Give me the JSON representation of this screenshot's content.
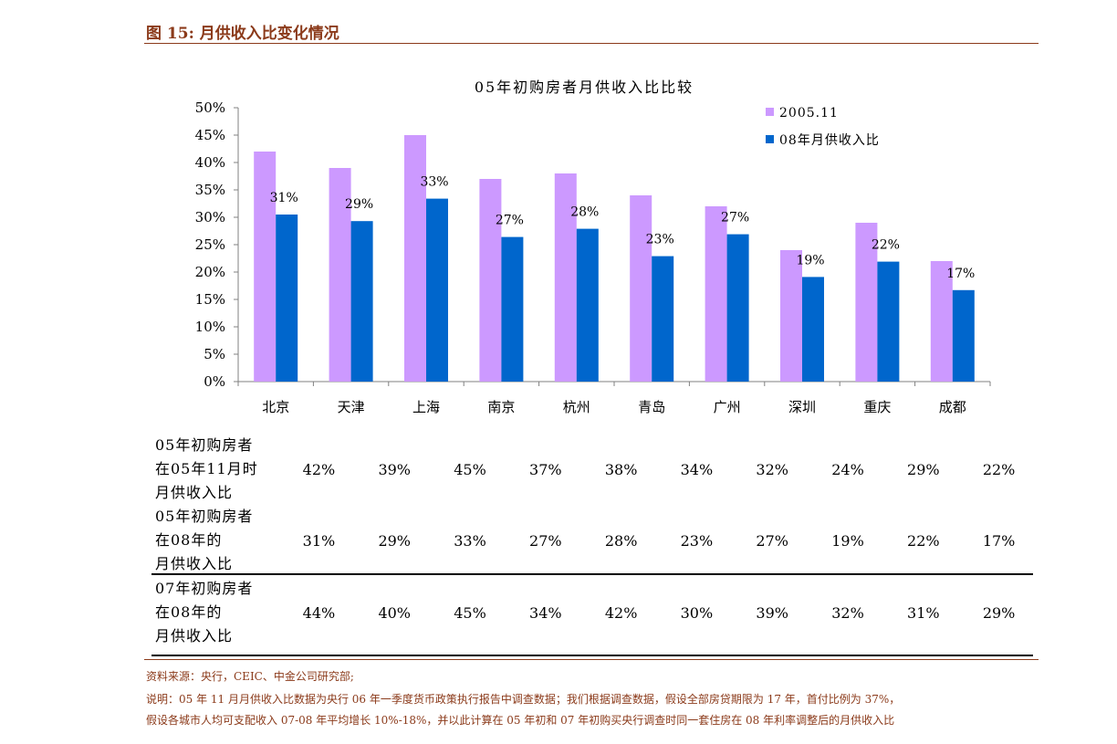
{
  "figure_title": "图 15:  月供收入比变化情况",
  "chart_data": {
    "type": "bar",
    "title": "05年初购房者月供收入比比较",
    "categories": [
      "北京",
      "天津",
      "上海",
      "南京",
      "杭州",
      "青岛",
      "广州",
      "深圳",
      "重庆",
      "成都"
    ],
    "series": [
      {
        "name": "2005.11",
        "values": [
          42,
          39,
          45,
          37,
          38,
          34,
          32,
          24,
          29,
          22
        ],
        "color": "#cc99ff"
      },
      {
        "name": "08年月供收入比",
        "values": [
          30.5,
          29.3,
          33.4,
          26.4,
          27.9,
          22.9,
          26.9,
          19.1,
          21.9,
          16.7
        ],
        "color": "#0066cc"
      }
    ],
    "data_labels": [
      "31%",
      "29%",
      "33%",
      "27%",
      "28%",
      "23%",
      "27%",
      "19%",
      "22%",
      "17%"
    ],
    "yticks": [
      "0%",
      "5%",
      "10%",
      "15%",
      "20%",
      "25%",
      "30%",
      "35%",
      "40%",
      "45%",
      "50%"
    ],
    "ylim": [
      0,
      50
    ],
    "legend_position": "top-right",
    "grid": false
  },
  "table": {
    "rows": [
      {
        "label": [
          "05年初购房者",
          "在05年11月时",
          "月供收入比"
        ],
        "values": [
          "42%",
          "39%",
          "45%",
          "37%",
          "38%",
          "34%",
          "32%",
          "24%",
          "29%",
          "22%"
        ]
      },
      {
        "label": [
          "05年初购房者",
          "在08年的",
          "月供收入比"
        ],
        "values": [
          "31%",
          "29%",
          "33%",
          "27%",
          "28%",
          "23%",
          "27%",
          "19%",
          "22%",
          "17%"
        ]
      },
      {
        "label": [
          "07年初购房者",
          "在08年的",
          "月供收入比"
        ],
        "values": [
          "44%",
          "40%",
          "45%",
          "34%",
          "42%",
          "30%",
          "39%",
          "32%",
          "31%",
          "29%"
        ]
      }
    ]
  },
  "notes": {
    "source": "资料来源：央行，CEIC、中金公司研究部;",
    "line1": "说明：05 年 11 月月供收入比数据为央行 06 年一季度货币政策执行报告中调查数据；我们根据调查数据，假设全部房贷期限为 17 年，首付比例为 37%，",
    "line2": "假设各城市人均可支配收入 07-08 年平均增长 10%-18%，并以此计算在 05 年初和 07 年初购买央行调查时同一套住房在 08 年利率调整后的月供收入比"
  }
}
